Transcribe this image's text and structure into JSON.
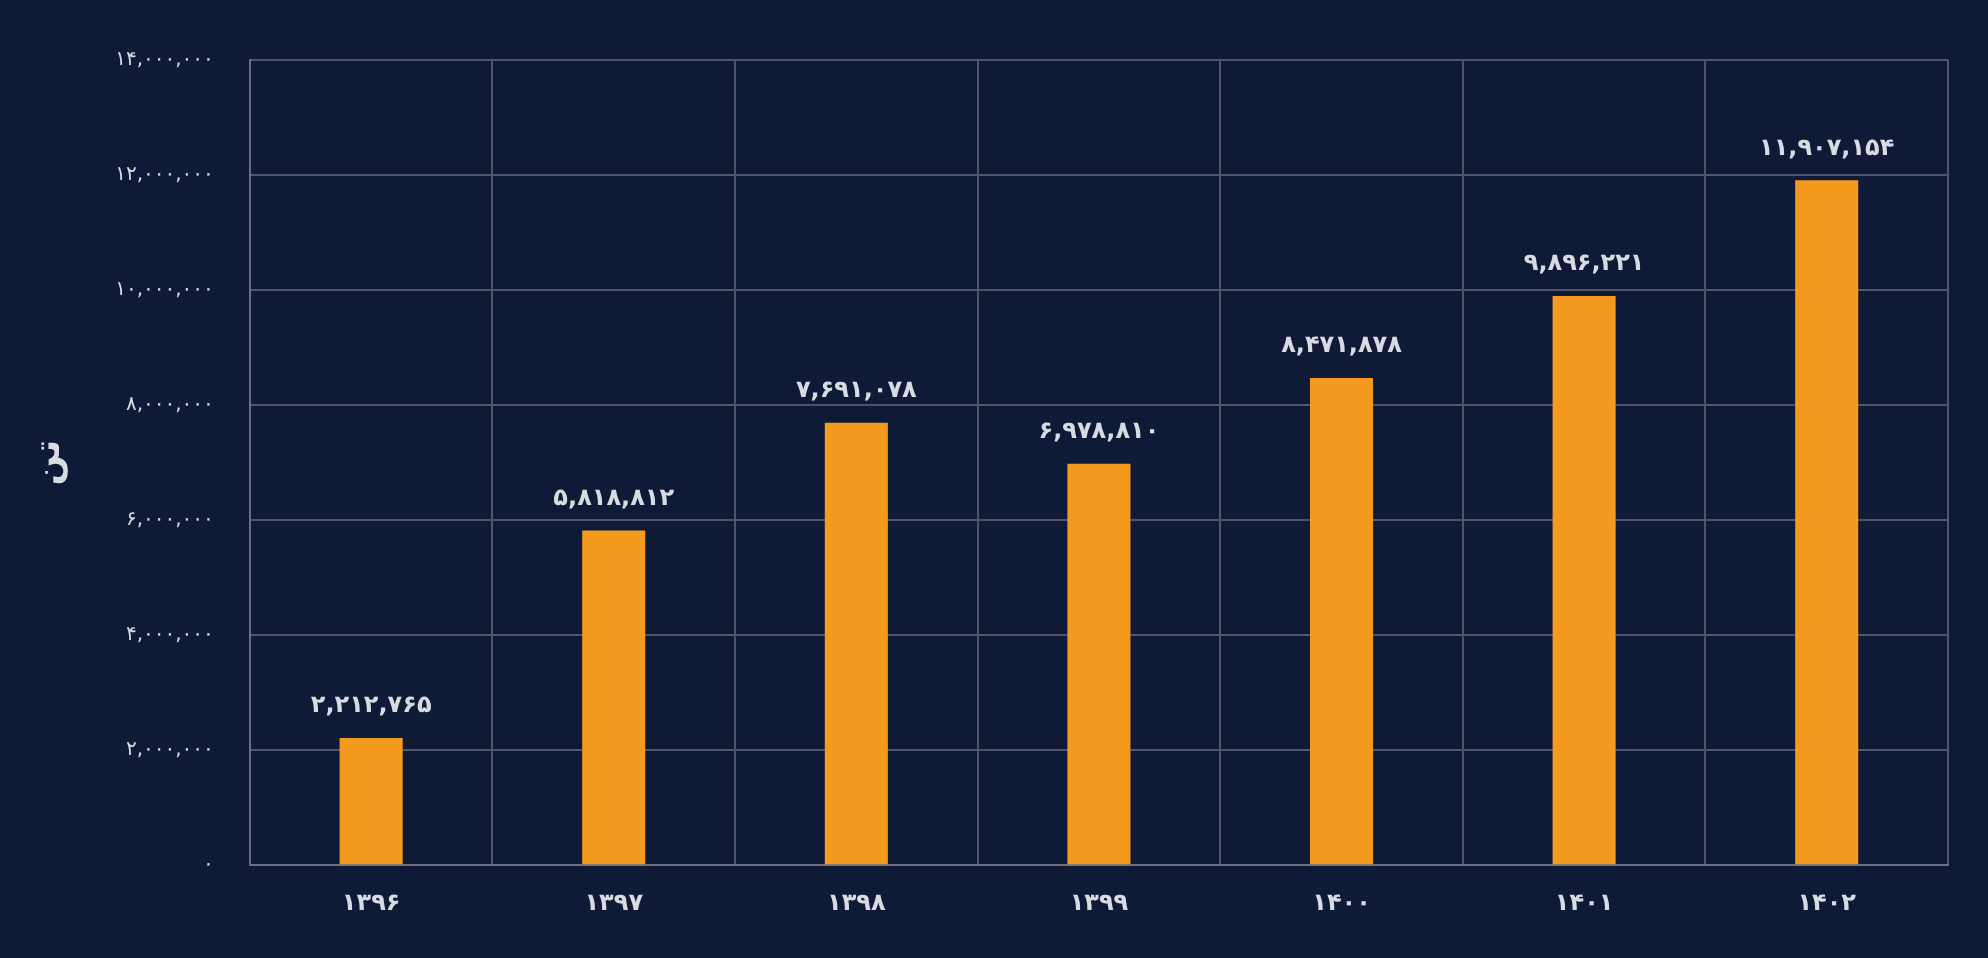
{
  "chart_data": {
    "type": "bar",
    "ylabel": "تن",
    "categories": [
      "۱۳۹۶",
      "۱۳۹۷",
      "۱۳۹۸",
      "۱۳۹۹",
      "۱۴۰۰",
      "۱۴۰۱",
      "۱۴۰۲"
    ],
    "values": [
      2212765,
      5818812,
      7691078,
      6978810,
      8471878,
      9896221,
      11907154
    ],
    "value_labels": [
      "۲,۲۱۲,۷۶۵",
      "۵,۸۱۸,۸۱۲",
      "۷,۶۹۱,۰۷۸",
      "۶,۹۷۸,۸۱۰",
      "۸,۴۷۱,۸۷۸",
      "۹,۸۹۶,۲۲۱",
      "۱۱,۹۰۷,۱۵۴"
    ],
    "color": "#f39a1f",
    "ylim": [
      0,
      14000000
    ],
    "yticks": [
      {
        "value": 0,
        "label": "۰"
      },
      {
        "value": 2000000,
        "label": "۲,۰۰۰,۰۰۰"
      },
      {
        "value": 4000000,
        "label": "۴,۰۰۰,۰۰۰"
      },
      {
        "value": 6000000,
        "label": "۶,۰۰۰,۰۰۰"
      },
      {
        "value": 8000000,
        "label": "۸,۰۰۰,۰۰۰"
      },
      {
        "value": 10000000,
        "label": "۱۰,۰۰۰,۰۰۰"
      },
      {
        "value": 12000000,
        "label": "۱۲,۰۰۰,۰۰۰"
      },
      {
        "value": 14000000,
        "label": "۱۴,۰۰۰,۰۰۰"
      }
    ],
    "grid": true,
    "legend": false
  }
}
